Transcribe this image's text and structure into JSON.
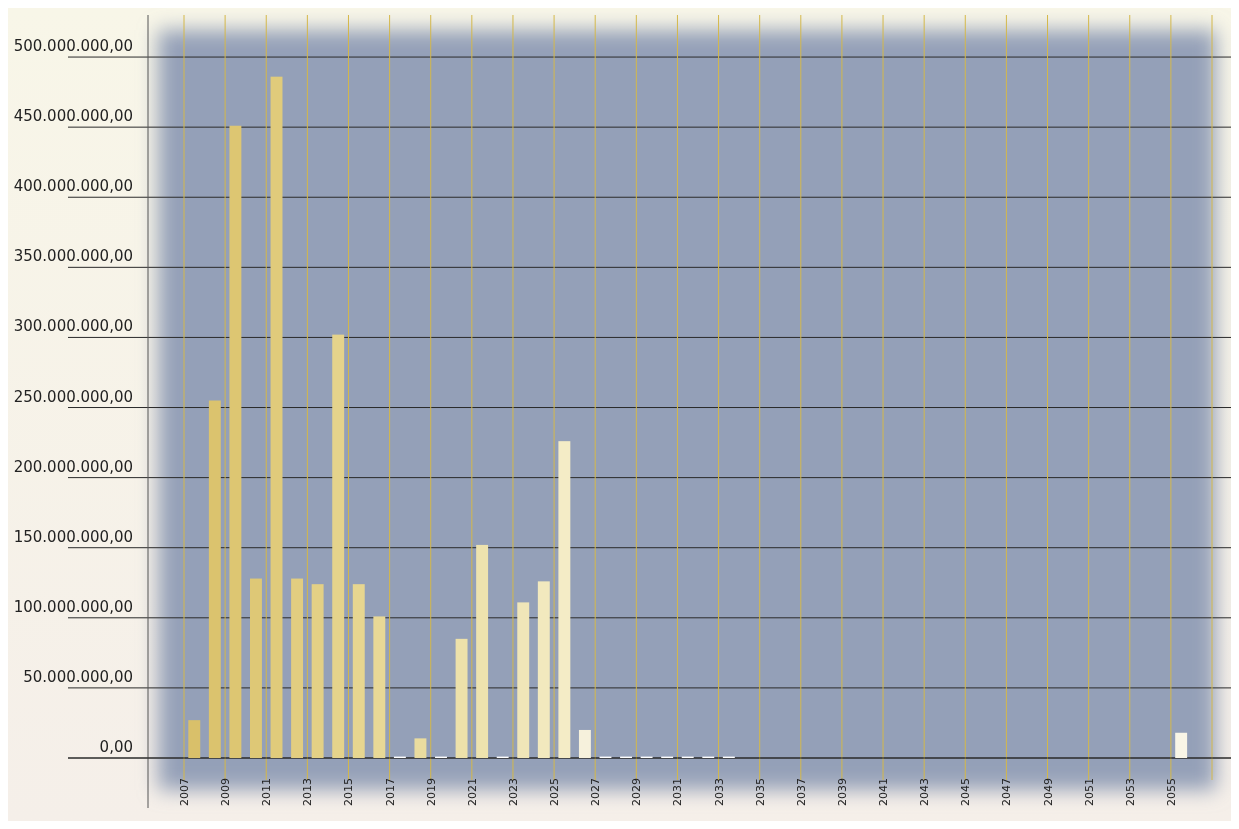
{
  "chart_data": {
    "type": "bar",
    "categories": [
      "2007",
      null,
      "2009",
      null,
      "2011",
      null,
      "2013",
      null,
      "2015",
      null,
      "2017",
      null,
      "2019",
      null,
      "2021",
      null,
      "2023",
      null,
      "2025",
      null,
      "2027",
      null,
      "2029",
      null,
      "2031",
      null,
      "2033",
      null,
      "2035",
      null,
      "2037",
      null,
      "2039",
      null,
      "2041",
      null,
      "2043",
      null,
      "2045",
      null,
      "2047",
      null,
      "2049",
      null,
      "2051",
      null,
      "2053",
      null,
      "2055",
      null
    ],
    "values": [
      27000000,
      255000000,
      451000000,
      128000000,
      486000000,
      128000000,
      124000000,
      302000000,
      124000000,
      101000000,
      1000000,
      14000000,
      1000000,
      85000000,
      152000000,
      1000000,
      111000000,
      126000000,
      226000000,
      20000000,
      1000000,
      1000000,
      1000000,
      1000000,
      1000000,
      1000000,
      1000000,
      0,
      0,
      0,
      0,
      0,
      0,
      0,
      0,
      0,
      0,
      0,
      0,
      0,
      0,
      0,
      0,
      0,
      0,
      0,
      0,
      0,
      18000000,
      0
    ],
    "colors": [
      "#d9c06a",
      "#dbc36e",
      "#ddc672",
      "#dec876",
      "#e0cb7b",
      "#e2cd80",
      "#e3d085",
      "#e5d38b",
      "#e7d690",
      "#e8d896",
      "#ffffff",
      "#eadc9f",
      "#ffffff",
      "#ede1aa",
      "#eee3ae",
      "#ffffff",
      "#f0e6b8",
      "#f2e9be",
      "#f4ecc6",
      "#f6f1dc",
      "#ffffff",
      "#ffffff",
      "#ffffff",
      "#ffffff",
      "#ffffff",
      "#ffffff",
      "#ffffff",
      "#ffffff",
      "#ffffff",
      "#ffffff",
      "#ffffff",
      "#ffffff",
      "#ffffff",
      "#ffffff",
      "#ffffff",
      "#ffffff",
      "#ffffff",
      "#ffffff",
      "#ffffff",
      "#ffffff",
      "#ffffff",
      "#ffffff",
      "#ffffff",
      "#ffffff",
      "#ffffff",
      "#ffffff",
      "#ffffff",
      "#ffffff",
      "#f9f5e6",
      "#ffffff"
    ],
    "ylim": [
      0,
      530000000
    ],
    "yticks": [
      {
        "value": 0,
        "label": "0,00"
      },
      {
        "value": 50000000,
        "label": "50.000.000,00"
      },
      {
        "value": 100000000,
        "label": "100.000.000,00"
      },
      {
        "value": 150000000,
        "label": "150.000.000,00"
      },
      {
        "value": 200000000,
        "label": "200.000.000,00"
      },
      {
        "value": 250000000,
        "label": "250.000.000,00"
      },
      {
        "value": 300000000,
        "label": "300.000.000,00"
      },
      {
        "value": 350000000,
        "label": "350.000.000,00"
      },
      {
        "value": 400000000,
        "label": "400.000.000,00"
      },
      {
        "value": 450000000,
        "label": "450.000.000,00"
      },
      {
        "value": 500000000,
        "label": "500.000.000,00"
      }
    ],
    "grid": true
  }
}
